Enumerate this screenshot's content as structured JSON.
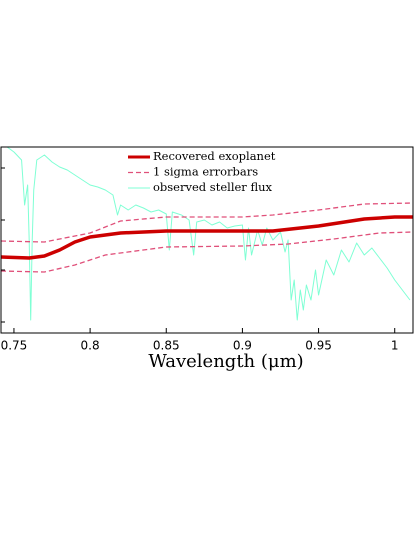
{
  "chart_data": {
    "type": "line",
    "xlabel": "Wavelength (μm)",
    "xlim": [
      0.7415,
      1.012
    ],
    "ylim": [
      0,
      186
    ],
    "xticks": [
      0.75,
      0.8,
      0.85,
      0.9,
      0.95,
      1
    ],
    "legend": "top center",
    "series": [
      {
        "name": "Recovered exoplanet",
        "color": "#cc0000",
        "style": "solid",
        "x": [
          0.7415,
          0.76,
          0.77,
          0.78,
          0.79,
          0.8,
          0.82,
          0.85,
          0.9,
          0.92,
          0.95,
          0.98,
          1.0,
          1.012
        ],
        "values": [
          76,
          75,
          77,
          83,
          91,
          96,
          100,
          102,
          102,
          102,
          107,
          114,
          116,
          116
        ]
      },
      {
        "name": "1 sigma errorbars",
        "color": "#e0507a",
        "style": "dashed",
        "x": [
          0.7415,
          0.77,
          0.8,
          0.82,
          0.85,
          0.9,
          0.92,
          0.95,
          0.98,
          1.012
        ],
        "values": [
          92,
          91,
          100,
          112,
          116,
          116,
          118,
          123,
          129,
          130
        ]
      },
      {
        "name": null,
        "color": "#e0507a",
        "style": "dashed",
        "x": [
          0.7415,
          0.77,
          0.79,
          0.81,
          0.85,
          0.9,
          0.93,
          0.96,
          0.99,
          1.012
        ],
        "values": [
          62,
          61,
          68,
          78,
          86,
          87,
          89,
          94,
          100,
          101
        ]
      },
      {
        "name": "observed steller flux",
        "color": "#7fffd4",
        "style": "thin",
        "x": [
          0.742,
          0.75,
          0.755,
          0.757,
          0.759,
          0.76,
          0.761,
          0.762,
          0.763,
          0.765,
          0.77,
          0.775,
          0.78,
          0.785,
          0.79,
          0.795,
          0.8,
          0.805,
          0.81,
          0.815,
          0.818,
          0.82,
          0.825,
          0.83,
          0.835,
          0.84,
          0.845,
          0.85,
          0.852,
          0.854,
          0.86,
          0.865,
          0.868,
          0.87,
          0.875,
          0.88,
          0.885,
          0.89,
          0.895,
          0.9,
          0.902,
          0.904,
          0.906,
          0.91,
          0.913,
          0.916,
          0.92,
          0.925,
          0.928,
          0.93,
          0.932,
          0.934,
          0.936,
          0.938,
          0.94,
          0.942,
          0.945,
          0.948,
          0.95,
          0.955,
          0.96,
          0.965,
          0.97,
          0.975,
          0.98,
          0.985,
          0.99,
          0.995,
          1.0,
          1.005,
          1.01
        ],
        "values": [
          190,
          181,
          173,
          128,
          148,
          93,
          13,
          93,
          143,
          173,
          178,
          171,
          166,
          163,
          158,
          153,
          148,
          146,
          143,
          138,
          118,
          128,
          123,
          128,
          125,
          121,
          123,
          119,
          83,
          121,
          118,
          113,
          78,
          111,
          113,
          108,
          111,
          105,
          107,
          108,
          73,
          105,
          78,
          103,
          88,
          105,
          93,
          101,
          81,
          93,
          33,
          53,
          13,
          43,
          23,
          48,
          33,
          63,
          38,
          73,
          58,
          83,
          71,
          90,
          78,
          85,
          75,
          65,
          53,
          43,
          33
        ]
      }
    ]
  }
}
